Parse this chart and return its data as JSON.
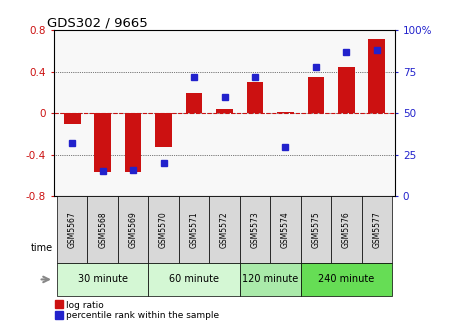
{
  "title": "GDS302 / 9665",
  "samples": [
    "GSM5567",
    "GSM5568",
    "GSM5569",
    "GSM5570",
    "GSM5571",
    "GSM5572",
    "GSM5573",
    "GSM5574",
    "GSM5575",
    "GSM5576",
    "GSM5577"
  ],
  "log_ratio": [
    -0.1,
    -0.57,
    -0.57,
    -0.32,
    0.2,
    0.04,
    0.3,
    0.01,
    0.35,
    0.45,
    0.72
  ],
  "percentile": [
    32,
    15,
    16,
    20,
    72,
    60,
    72,
    30,
    78,
    87,
    88
  ],
  "groups": [
    {
      "label": "30 minute",
      "start": 0,
      "end": 3,
      "color": "#d4f7d4"
    },
    {
      "label": "60 minute",
      "start": 3,
      "end": 6,
      "color": "#d4f7d4"
    },
    {
      "label": "120 minute",
      "start": 6,
      "end": 8,
      "color": "#aaeaaa"
    },
    {
      "label": "240 minute",
      "start": 8,
      "end": 11,
      "color": "#66dd55"
    }
  ],
  "bar_color": "#cc1111",
  "dot_color": "#2222cc",
  "ylim_left": [
    -0.8,
    0.8
  ],
  "ylim_right": [
    0,
    100
  ],
  "yticks_left": [
    -0.8,
    -0.4,
    0.0,
    0.4,
    0.8
  ],
  "yticks_right": [
    0,
    25,
    50,
    75,
    100
  ],
  "ytick_labels_right": [
    "0",
    "25",
    "50",
    "75",
    "100%"
  ],
  "hline_color": "#cc1111",
  "plot_bg": "#f8f8f8"
}
